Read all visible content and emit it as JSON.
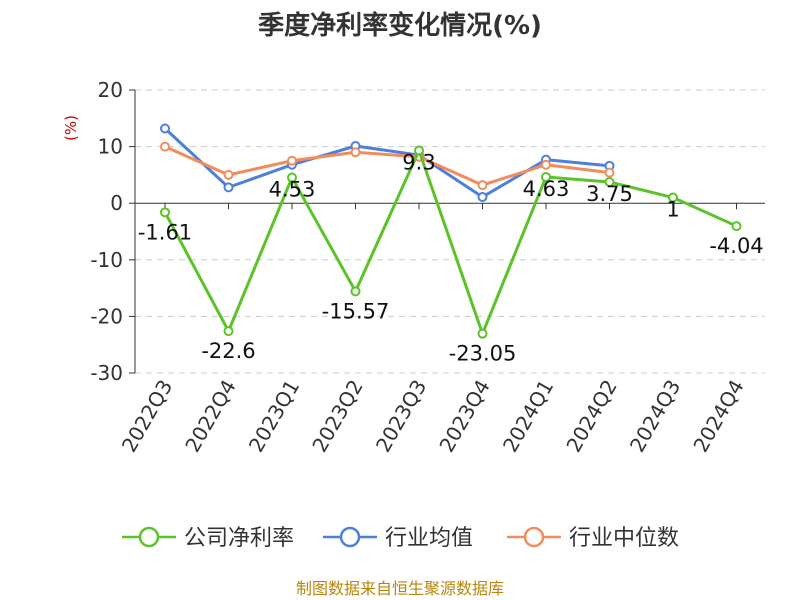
{
  "chart_data": {
    "type": "line",
    "title": "季度净利率变化情况(%)",
    "ylabel": "(%)",
    "xlabel": "",
    "categories": [
      "2022Q3",
      "2022Q4",
      "2023Q1",
      "2023Q2",
      "2023Q3",
      "2023Q4",
      "2024Q1",
      "2024Q2",
      "2024Q3",
      "2024Q4"
    ],
    "ylim": [
      -30,
      20
    ],
    "yticks": [
      20,
      10,
      0,
      -10,
      -20,
      -30
    ],
    "grid": true,
    "legend_position": "bottom",
    "series": [
      {
        "name": "公司净利率",
        "color": "#5cc22a",
        "values": [
          -1.61,
          -22.6,
          4.53,
          -15.57,
          9.3,
          -23.05,
          4.63,
          3.75,
          1,
          -4.04
        ],
        "labels": [
          "-1.61",
          "-22.6",
          "4.53",
          "-15.57",
          "9.3",
          "-23.05",
          "4.63",
          "3.75",
          "1",
          "-4.04"
        ]
      },
      {
        "name": "行业均值",
        "color": "#4f7fdc",
        "values": [
          13.2,
          2.8,
          6.8,
          10.1,
          8.5,
          1.1,
          7.7,
          6.6,
          null,
          null
        ]
      },
      {
        "name": "行业中位数",
        "color": "#f28c5a",
        "values": [
          10.0,
          5.0,
          7.5,
          9.0,
          8.2,
          3.2,
          6.8,
          5.4,
          null,
          null
        ]
      }
    ]
  },
  "source": "制图数据来自恒生聚源数据库"
}
